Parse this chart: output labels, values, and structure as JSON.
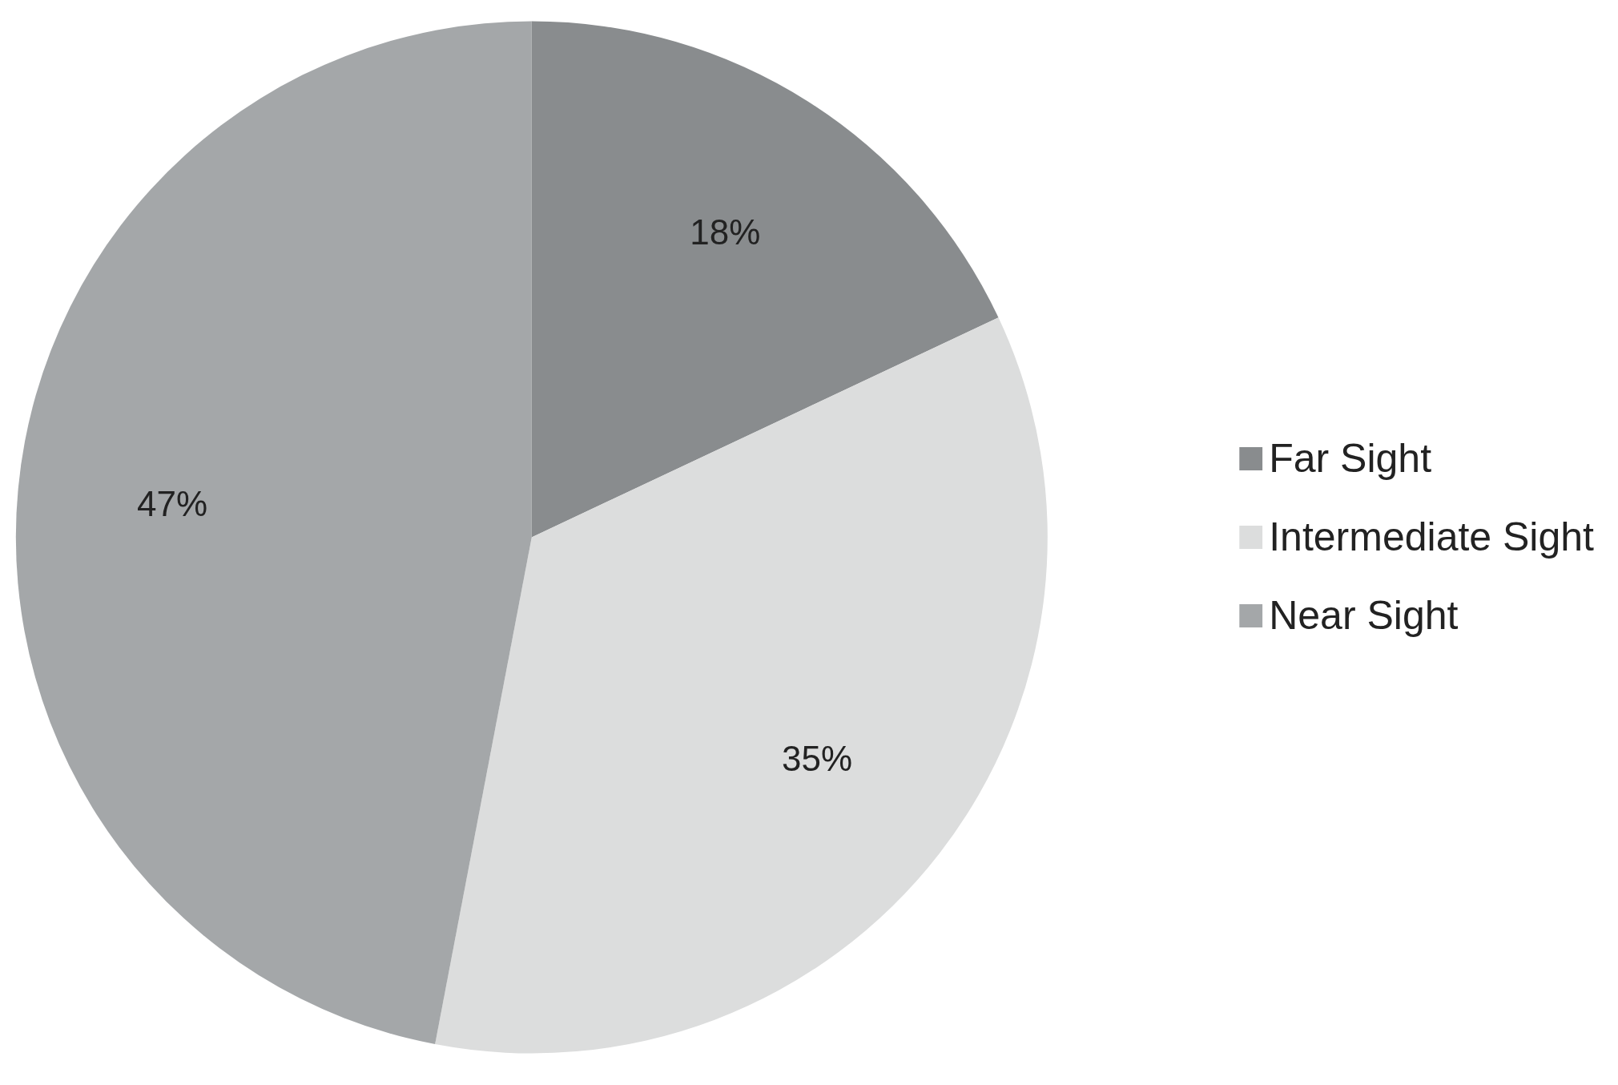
{
  "chart_data": {
    "type": "pie",
    "categories": [
      "Far Sight",
      "Intermediate Sight",
      "Near Sight"
    ],
    "values": [
      18,
      35,
      47
    ],
    "colors": [
      "#898c8e",
      "#dcdddd",
      "#a4a7a9"
    ],
    "value_labels": [
      "18%",
      "35%",
      "47%"
    ],
    "legend": "right"
  }
}
